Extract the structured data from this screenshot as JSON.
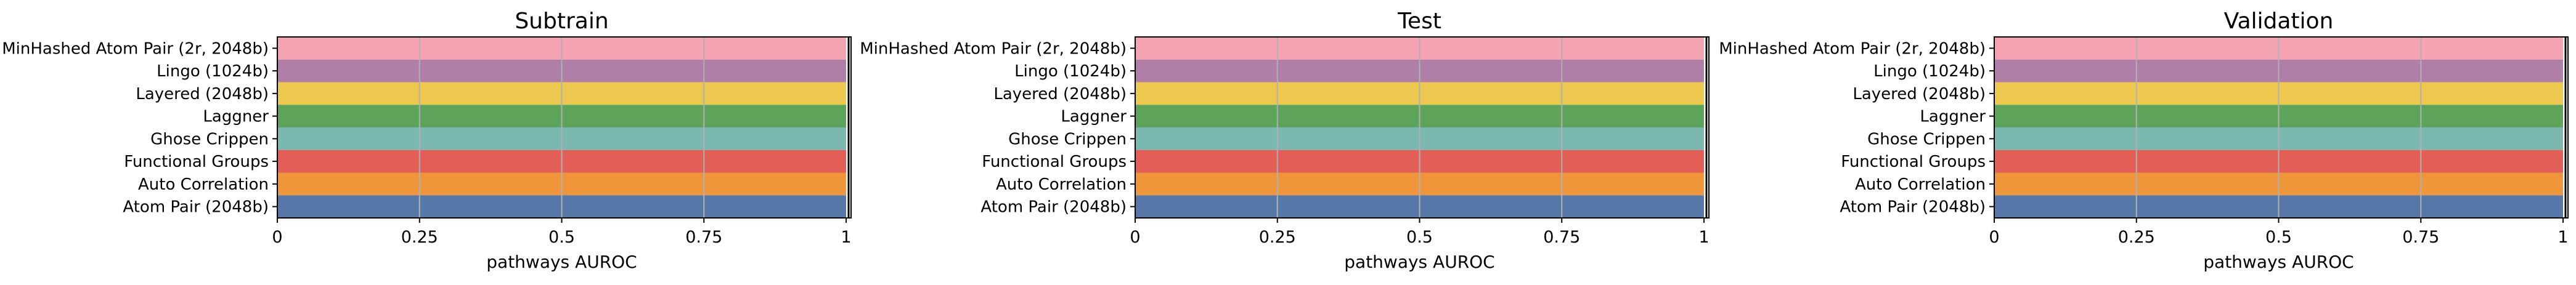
{
  "colors": {
    "MinHashed Atom Pair (2r, 2048b)": "#f5a3b3",
    "Lingo (1024b)": "#b07fa8",
    "Layered (2048b)": "#ecc84e",
    "Laggner": "#5ea35a",
    "Ghose Crippen": "#7ab8b0",
    "Functional Groups": "#e15f57",
    "Auto Correlation": "#f0963a",
    "Atom Pair (2048b)": "#5678a8",
    "grid": "#b0b0b0"
  },
  "chart_data": [
    {
      "type": "bar",
      "orientation": "horizontal",
      "title": "Subtrain",
      "xlabel": "pathways AUROC",
      "categories": [
        "MinHashed Atom Pair (2r, 2048b)",
        "Lingo (1024b)",
        "Layered (2048b)",
        "Laggner",
        "Ghose Crippen",
        "Functional Groups",
        "Auto Correlation",
        "Atom Pair (2048b)"
      ],
      "values": [
        1,
        1,
        1,
        1,
        1,
        1,
        1,
        1
      ],
      "xlim": [
        0,
        1
      ],
      "xticks": [
        "0",
        "0.25",
        "0.5",
        "0.75",
        "1"
      ],
      "grid": "vertical"
    },
    {
      "type": "bar",
      "orientation": "horizontal",
      "title": "Test",
      "xlabel": "pathways AUROC",
      "categories": [
        "MinHashed Atom Pair (2r, 2048b)",
        "Lingo (1024b)",
        "Layered (2048b)",
        "Laggner",
        "Ghose Crippen",
        "Functional Groups",
        "Auto Correlation",
        "Atom Pair (2048b)"
      ],
      "values": [
        1,
        1,
        1,
        1,
        1,
        1,
        1,
        1
      ],
      "xlim": [
        0,
        1
      ],
      "xticks": [
        "0",
        "0.25",
        "0.5",
        "0.75",
        "1"
      ],
      "grid": "vertical"
    },
    {
      "type": "bar",
      "orientation": "horizontal",
      "title": "Validation",
      "xlabel": "pathways AUROC",
      "categories": [
        "MinHashed Atom Pair (2r, 2048b)",
        "Lingo (1024b)",
        "Layered (2048b)",
        "Laggner",
        "Ghose Crippen",
        "Functional Groups",
        "Auto Correlation",
        "Atom Pair (2048b)"
      ],
      "values": [
        1,
        1,
        1,
        1,
        1,
        1,
        1,
        1
      ],
      "xlim": [
        0,
        1
      ],
      "xticks": [
        "0",
        "0.25",
        "0.5",
        "0.75",
        "1"
      ],
      "grid": "vertical"
    }
  ]
}
